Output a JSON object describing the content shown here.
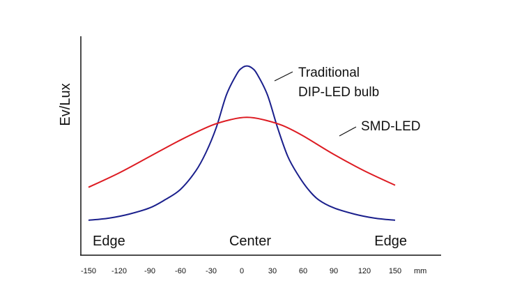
{
  "chart_data": {
    "type": "line",
    "ylabel": "Ev/Lux",
    "x_ticks": [
      -150,
      -120,
      -90,
      -60,
      -30,
      0,
      30,
      60,
      90,
      120,
      150
    ],
    "x_unit": "mm",
    "xlim": [
      -160,
      195
    ],
    "ylim": [
      0,
      100
    ],
    "y_ticks_shown": false,
    "grid": false,
    "legend": "none",
    "region_labels": {
      "left": "Edge",
      "center": "Center",
      "right": "Edge"
    },
    "series": [
      {
        "name": "Traditional DIP-LED bulb",
        "label_lines": [
          "Traditional",
          "DIP-LED bulb"
        ],
        "color": "#1a1f8c",
        "x": [
          -150,
          -130,
          -110,
          -90,
          -75,
          -60,
          -45,
          -35,
          -25,
          -15,
          -5,
          0,
          5,
          10,
          15,
          25,
          35,
          45,
          55,
          65,
          75,
          90,
          110,
          130,
          150
        ],
        "y": [
          17,
          18,
          20,
          23,
          27,
          32,
          41,
          50,
          62,
          78,
          88,
          91,
          92,
          91,
          88,
          78,
          62,
          48,
          39,
          32,
          27,
          23,
          20,
          18,
          17
        ]
      },
      {
        "name": "SMD-LED",
        "label_lines": [
          "SMD-LED"
        ],
        "color": "#dd1b22",
        "x": [
          -150,
          -120,
          -90,
          -60,
          -30,
          -10,
          5,
          20,
          40,
          60,
          90,
          120,
          150
        ],
        "y": [
          33,
          40,
          48,
          56,
          63,
          66,
          67,
          66,
          63,
          58,
          49,
          41,
          34
        ]
      }
    ]
  }
}
